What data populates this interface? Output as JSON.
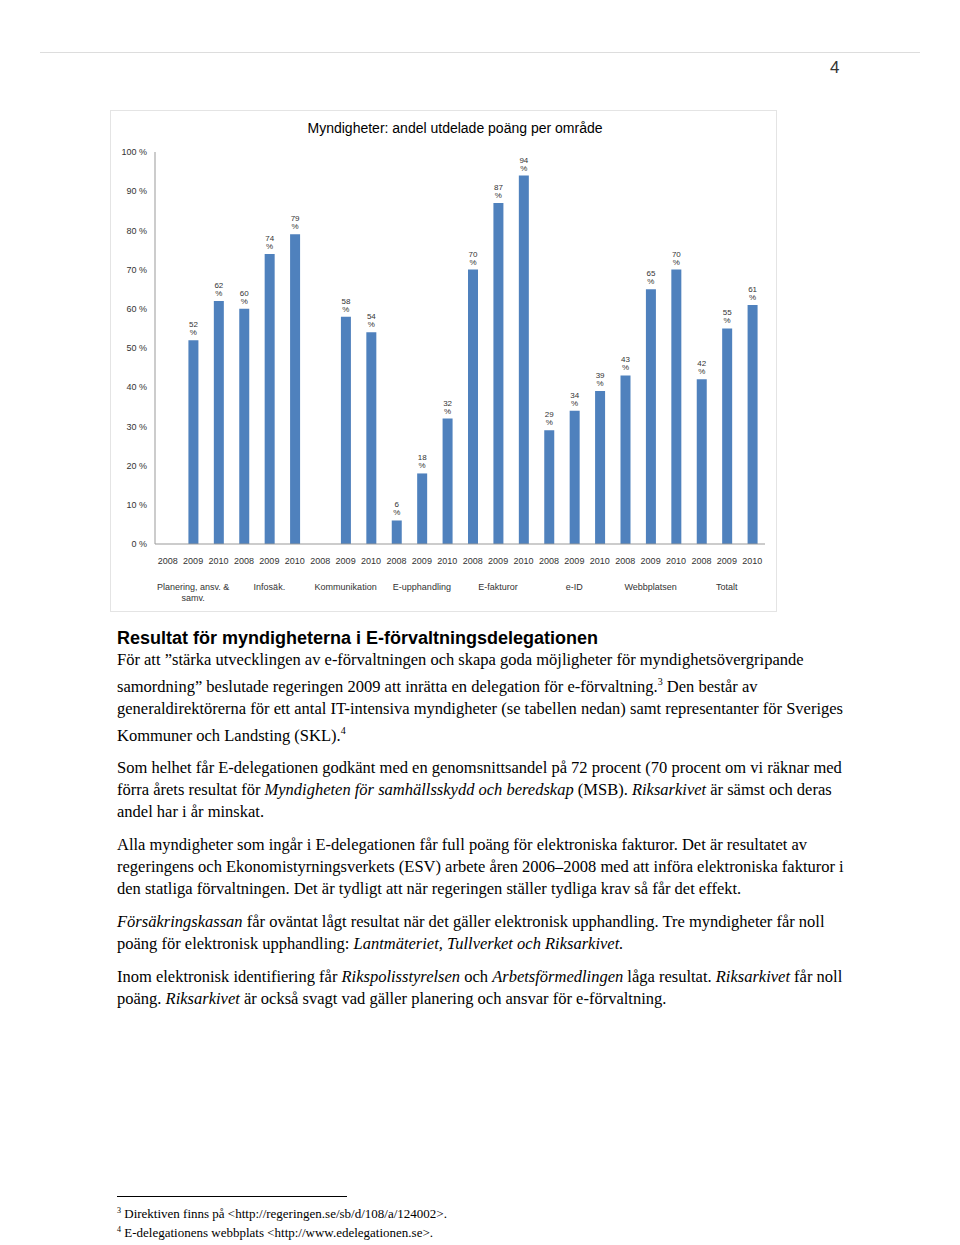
{
  "page_number": "4",
  "chart_data": {
    "type": "bar",
    "title": "Myndigheter: andel utdelade poäng per område",
    "categories": [
      "2008",
      "2009",
      "2010",
      "2008",
      "2009",
      "2010",
      "2008",
      "2009",
      "2010",
      "2008",
      "2009",
      "2010",
      "2008",
      "2009",
      "2010",
      "2008",
      "2009",
      "2010",
      "2008",
      "2009",
      "2010",
      "2008",
      "2009",
      "2010"
    ],
    "groups": [
      "Planering, ansv. & samv.",
      "Infosäk.",
      "Kommunikation",
      "E-upphandling",
      "E-fakturor",
      "e-ID",
      "Webbplatsen",
      "Totalt"
    ],
    "values": [
      null,
      52,
      62,
      60,
      74,
      79,
      null,
      58,
      54,
      6,
      18,
      32,
      70,
      87,
      94,
      29,
      34,
      39,
      43,
      65,
      70,
      42,
      55,
      61
    ],
    "value_labels": [
      null,
      "52 %",
      "62 %",
      "60 %",
      "74 %",
      "79 %",
      null,
      "58 %",
      "54 %",
      "6 %",
      "18 %",
      "32 %",
      "70 %",
      "87 %",
      "94 %",
      "29 %",
      "34 %",
      "39 %",
      "43 %",
      "65 %",
      "70 %",
      "42 %",
      "55 %",
      "61 %"
    ],
    "color": "#4f81bd",
    "data_labels": true,
    "grid": false,
    "ylim": [
      0,
      100
    ],
    "yticks": [
      {
        "value": 0,
        "label": "0 %"
      },
      {
        "value": 10,
        "label": "10 %"
      },
      {
        "value": 20,
        "label": "20 %"
      },
      {
        "value": 30,
        "label": "30 %"
      },
      {
        "value": 40,
        "label": "40 %"
      },
      {
        "value": 50,
        "label": "50 %"
      },
      {
        "value": 60,
        "label": "60 %"
      },
      {
        "value": 70,
        "label": "70 %"
      },
      {
        "value": 80,
        "label": "80 %"
      },
      {
        "value": 90,
        "label": "90 %"
      },
      {
        "value": 100,
        "label": "100 %"
      }
    ]
  },
  "heading": "Resultat för myndigheterna i E-förvaltningsdelegationen",
  "paragraphs": [
    [
      {
        "text": "För att ”stärka utvecklingen av e-förvaltningen och skapa goda möjligheter för myndighetsövergripande samordning” beslutade regeringen 2009 att inrätta en delegation för e-förvaltning."
      },
      {
        "sup": "3"
      },
      {
        "text": " Den består av generaldirektörerna för ett antal IT-intensiva myndigheter (se tabellen nedan) samt representanter för Sveriges Kommuner och Landsting (SKL)."
      },
      {
        "sup": "4"
      }
    ],
    [
      {
        "text": "Som helhet får E-delegationen godkänt med en genomsnittsandel på 72 procent (70 procent om vi räknar med förra årets resultat för "
      },
      {
        "text": "Myndigheten för samhällsskydd och beredskap",
        "italic": true
      },
      {
        "text": " (MSB). "
      },
      {
        "text": "Riksarkivet",
        "italic": true
      },
      {
        "text": " är sämst och deras andel har i år minskat."
      }
    ],
    [
      {
        "text": "Alla myndigheter som ingår i E-delegationen får full poäng för elektroniska fakturor. Det är resultatet av regeringens och Ekonomistyrningsverkets (ESV) arbete åren 2006–2008 med att införa elektroniska fakturor i den statliga förvaltningen. Det är tydligt att när regeringen ställer tydliga krav så får det effekt."
      }
    ],
    [
      {
        "text": "Försäkringskassan",
        "italic": true
      },
      {
        "text": " får oväntat lågt resultat när det gäller elektronisk upphandling. Tre myndigheter får noll poäng för elektronisk upphandling: "
      },
      {
        "text": "Lantmäteriet, Tullverket och Riksarkivet.",
        "italic": true
      }
    ],
    [
      {
        "text": "Inom elektronisk identifiering får "
      },
      {
        "text": "Rikspolisstyrelsen",
        "italic": true
      },
      {
        "text": " och "
      },
      {
        "text": "Arbetsförmedlingen",
        "italic": true
      },
      {
        "text": " låga resultat. "
      },
      {
        "text": "Riksarkivet",
        "italic": true
      },
      {
        "text": " får noll poäng. "
      },
      {
        "text": "Riksarkivet",
        "italic": true
      },
      {
        "text": " är också svagt vad gäller planering och ansvar för e-förvaltning."
      }
    ]
  ],
  "footnotes": [
    {
      "mark": "3",
      "text": "Direktiven finns på <http://regeringen.se/sb/d/108/a/124002>."
    },
    {
      "mark": "4",
      "text": "E-delegationens webbplats <http://www.edelegationen.se>."
    }
  ]
}
